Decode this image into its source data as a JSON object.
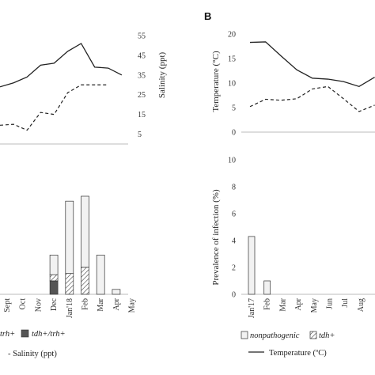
{
  "figure": {
    "panel_b_label": "B",
    "legend_left_frag": "trh+",
    "legend_left_dark": "tdh+/trh+",
    "legend_left_line": "- Salinity (ppt)",
    "legend_right_nonpath": "nonpathogenic",
    "legend_right_tdh": "tdh+",
    "legend_right_temp": "Temperature (ºC)",
    "colors": {
      "line": "#222222",
      "bar_light": "#f2f2f2",
      "bar_dark": "#555555",
      "axis": "#bbbbbb"
    }
  },
  "chart_data": [
    {
      "id": "top-left",
      "type": "line",
      "ylabel_right": "Salinity (ppt)",
      "y_right_ticks": [
        "55",
        "45",
        "35",
        "25",
        "15",
        "5"
      ],
      "y_right_lim": [
        0,
        55
      ],
      "series": [
        {
          "style": "solid",
          "values": [
            29,
            31,
            34,
            40,
            41,
            47,
            51,
            39,
            38.5,
            35
          ]
        },
        {
          "style": "dashed",
          "values": [
            9.5,
            10,
            7,
            16,
            15,
            26,
            30,
            30,
            30
          ]
        }
      ]
    },
    {
      "id": "bottom-left",
      "type": "bar",
      "categories": [
        "Sept",
        "Oct",
        "Nov",
        "Dec",
        "Jan'18",
        "Feb",
        "Mar",
        "Apr",
        "May"
      ],
      "stacks": [
        {
          "category": "Dec",
          "dark": 11,
          "hatched": 5,
          "light": 16
        },
        {
          "category": "Jan'18",
          "dark": 0,
          "hatched": 17,
          "light": 59
        },
        {
          "category": "Feb",
          "dark": 0,
          "hatched": 22,
          "light": 58
        },
        {
          "category": "Mar",
          "dark": 0,
          "hatched": 0,
          "light": 32
        },
        {
          "category": "Apr",
          "dark": 0,
          "hatched": 0,
          "light": 4
        }
      ]
    },
    {
      "id": "top-right",
      "type": "line",
      "ylabel": "Temperature (°C)",
      "y_ticks": [
        "20",
        "15",
        "10",
        "5",
        "0"
      ],
      "ylim": [
        0,
        20
      ],
      "series": [
        {
          "style": "solid",
          "values": [
            18.3,
            18.4,
            15.5,
            12.7,
            11,
            10.8,
            10.3,
            9.3,
            11.2
          ]
        },
        {
          "style": "dashed",
          "values": [
            5.2,
            6.7,
            6.5,
            6.8,
            8.8,
            9.3,
            6.8,
            4.2,
            5.5
          ]
        }
      ]
    },
    {
      "id": "bottom-right",
      "type": "bar",
      "ylabel": "Prevalence of infection (%)",
      "y_ticks": [
        "10",
        "8",
        "6",
        "4",
        "2",
        "0"
      ],
      "ylim": [
        0,
        10
      ],
      "categories": [
        "Jan'17",
        "Feb",
        "Mar",
        "Apr",
        "May",
        "Jun",
        "Jul",
        "Aug"
      ],
      "values": [
        4.3,
        1,
        0,
        0,
        0,
        0,
        0,
        0
      ]
    }
  ]
}
